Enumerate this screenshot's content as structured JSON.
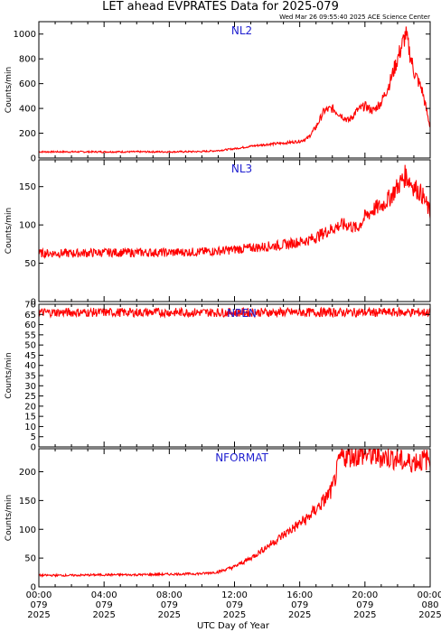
{
  "title": "LET ahead EVPRATES Data for 2025-079",
  "timestamp": "Wed Mar 26 09:55:40 2025 ACE Science Center",
  "xlabel": "UTC Day of Year",
  "colors": {
    "series": "#ff0000",
    "panel_label": "#1f1fd0",
    "axes": "#000000"
  },
  "chart_data": [
    {
      "type": "line",
      "name": "NL2",
      "ylabel": "Counts/min",
      "xlim": [
        0,
        24
      ],
      "ylim": [
        0,
        1100
      ],
      "yticks": [
        0,
        200,
        400,
        600,
        800,
        1000
      ],
      "x_hours": [
        0,
        2,
        4,
        6,
        8,
        10,
        11,
        12,
        13,
        14,
        15,
        16,
        16.5,
        17,
        17.5,
        18,
        18.5,
        19,
        19.5,
        20,
        20.5,
        21,
        21.5,
        22,
        22.5,
        23,
        23.5,
        24
      ],
      "y": [
        50,
        50,
        50,
        50,
        50,
        52,
        60,
        75,
        95,
        110,
        120,
        135,
        160,
        250,
        380,
        400,
        350,
        300,
        380,
        420,
        380,
        450,
        600,
        800,
        1000,
        700,
        550,
        250
      ]
    },
    {
      "type": "line",
      "name": "NL3",
      "ylabel": "Counts/min",
      "xlim": [
        0,
        24
      ],
      "ylim": [
        0,
        185
      ],
      "yticks": [
        0,
        50,
        100,
        150
      ],
      "x_hours": [
        0,
        2,
        4,
        6,
        8,
        10,
        11,
        12,
        13,
        14,
        15,
        16,
        16.5,
        17,
        17.5,
        18,
        18.5,
        19,
        19.5,
        20,
        20.5,
        21,
        21.5,
        22,
        22.5,
        23,
        23.5,
        24
      ],
      "y": [
        63,
        63,
        64,
        64,
        64,
        65,
        66,
        68,
        70,
        72,
        74,
        78,
        80,
        84,
        90,
        95,
        100,
        100,
        95,
        110,
        120,
        125,
        135,
        150,
        165,
        150,
        140,
        115
      ]
    },
    {
      "type": "line",
      "name": "NPEN",
      "ylabel": "Counts/min",
      "xlim": [
        0,
        24
      ],
      "ylim": [
        0,
        70
      ],
      "yticks": [
        0,
        5,
        10,
        15,
        20,
        25,
        30,
        35,
        40,
        45,
        50,
        55,
        60,
        65,
        70
      ],
      "x_hours": [
        0,
        4,
        8,
        12,
        16,
        20,
        24
      ],
      "y": [
        66,
        66,
        66,
        66,
        66,
        66,
        66
      ]
    },
    {
      "type": "line",
      "name": "NFORMAT",
      "ylabel": "Counts/min",
      "xlim": [
        0,
        24
      ],
      "ylim": [
        0,
        240
      ],
      "yticks": [
        0,
        50,
        100,
        150,
        200
      ],
      "x_hours": [
        0,
        2,
        4,
        6,
        8,
        10,
        11,
        12,
        13,
        14,
        15,
        16,
        16.5,
        17,
        17.5,
        18,
        18.5,
        19,
        19.5,
        20,
        20.5,
        21,
        21.5,
        22,
        22.5,
        23,
        23.5,
        24
      ],
      "y": [
        20,
        20,
        21,
        21,
        22,
        23,
        26,
        35,
        50,
        70,
        90,
        110,
        120,
        135,
        150,
        170,
        225,
        228,
        228,
        230,
        228,
        226,
        225,
        222,
        215,
        218,
        220,
        222
      ]
    }
  ],
  "xticks": [
    {
      "time": "00:00",
      "doy": "079",
      "year": "2025"
    },
    {
      "time": "04:00",
      "doy": "079",
      "year": "2025"
    },
    {
      "time": "08:00",
      "doy": "079",
      "year": "2025"
    },
    {
      "time": "12:00",
      "doy": "079",
      "year": "2025"
    },
    {
      "time": "16:00",
      "doy": "079",
      "year": "2025"
    },
    {
      "time": "20:00",
      "doy": "079",
      "year": "2025"
    },
    {
      "time": "00:00",
      "doy": "080",
      "year": "2025"
    }
  ]
}
